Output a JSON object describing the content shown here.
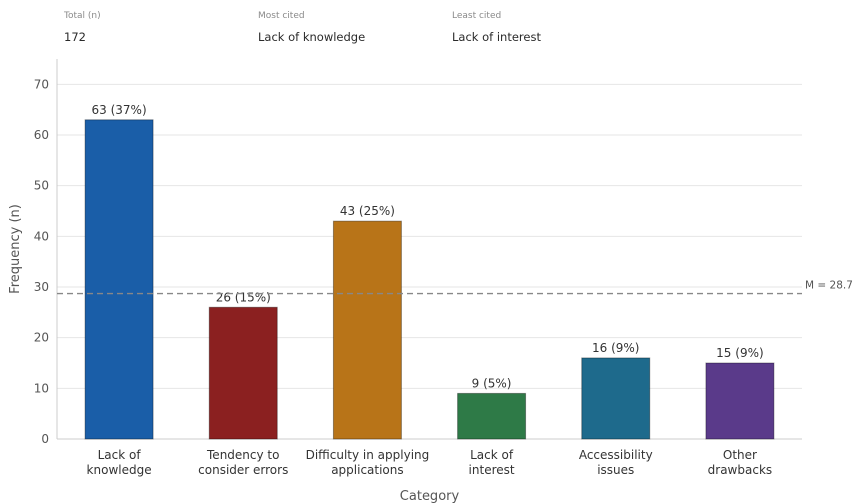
{
  "stats": [
    {
      "label": "Total (n)",
      "value": "172"
    },
    {
      "label": "Most cited",
      "value": "Lack of knowledge"
    },
    {
      "label": "Least cited",
      "value": "Lack of interest"
    }
  ],
  "chart_data": {
    "type": "bar",
    "categories": [
      [
        "Lack of",
        "knowledge"
      ],
      [
        "Tendency to",
        "consider errors"
      ],
      [
        "Difficulty in applying",
        "applications"
      ],
      [
        "Lack of",
        "interest"
      ],
      [
        "Accessibility",
        "issues"
      ],
      [
        "Other",
        "drawbacks"
      ]
    ],
    "values": [
      63,
      26,
      43,
      9,
      16,
      15
    ],
    "data_labels": [
      "63 (37%)",
      "26 (15%)",
      "43 (25%)",
      "9 (5%)",
      "16 (9%)",
      "15 (9%)"
    ],
    "colors": [
      "#1a5ea8",
      "#8b2020",
      "#b87418",
      "#2e7a47",
      "#1e6a8c",
      "#5a3a8a"
    ],
    "xlabel": "Category",
    "ylabel": "Frequency (n)",
    "ylim": [
      0,
      75
    ],
    "yticks": [
      0,
      10,
      20,
      30,
      40,
      50,
      60,
      70
    ],
    "mean": 28.7,
    "mean_label": "M = 28.7",
    "grid": "horizontal"
  }
}
